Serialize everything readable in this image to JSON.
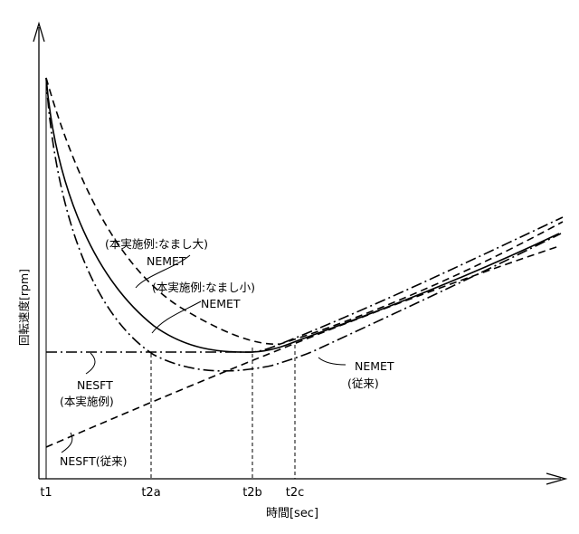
{
  "chart_data": {
    "type": "line",
    "ylabel": "回転速度[rpm]",
    "xlabel": "時間[sec]",
    "x_ticks": [
      "t1",
      "t2a",
      "t2b",
      "t2c"
    ],
    "curve_labels": {
      "large_l1": "(本実施例:なまし大)",
      "large_l2": "NEMET",
      "small_l1": "(本実施例:なまし小)",
      "small_l2": "NEMET",
      "conv_l1": "NEMET",
      "conv_l2": "(従来)",
      "nesft_new_l1": "NESFT",
      "nesft_new_l2": "(本実施例)",
      "nesft_conv": "NESFT(従来)"
    },
    "series": [
      {
        "line_style": "dashed"
      },
      {
        "line_style": "solid"
      },
      {
        "line_style": "dash-dot"
      },
      {
        "line_style": "dash-dot-flat"
      },
      {
        "line_style": "dashed-straight"
      }
    ]
  }
}
